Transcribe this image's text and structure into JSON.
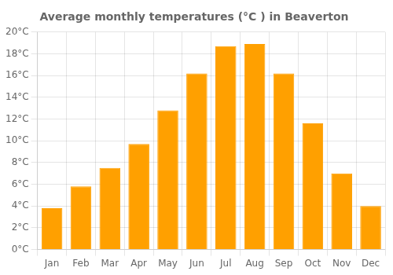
{
  "chart_data": {
    "type": "bar",
    "title": "Average monthly temperatures (°C ) in Beaverton",
    "categories": [
      "Jan",
      "Feb",
      "Mar",
      "Apr",
      "May",
      "Jun",
      "Jul",
      "Aug",
      "Sep",
      "Oct",
      "Nov",
      "Dec"
    ],
    "values": [
      3.8,
      5.8,
      7.5,
      9.7,
      12.8,
      16.2,
      18.7,
      18.9,
      16.2,
      11.6,
      7.0,
      4.0
    ],
    "color": "#FFA000",
    "ylim": [
      0,
      20
    ],
    "yticks": [
      {
        "value": 0,
        "label": "0°C"
      },
      {
        "value": 2,
        "label": "2°C"
      },
      {
        "value": 4,
        "label": "4°C"
      },
      {
        "value": 6,
        "label": "6°C"
      },
      {
        "value": 8,
        "label": "8°C"
      },
      {
        "value": 10,
        "label": "10°C"
      },
      {
        "value": 12,
        "label": "12°C"
      },
      {
        "value": 14,
        "label": "14°C"
      },
      {
        "value": 16,
        "label": "16°C"
      },
      {
        "value": 18,
        "label": "18°C"
      },
      {
        "value": 20,
        "label": "20°C"
      }
    ],
    "grid": true
  }
}
